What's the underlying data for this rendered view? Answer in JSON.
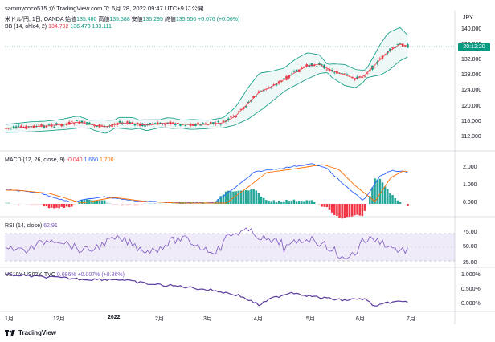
{
  "header": {
    "text": "sammycoco515 が TradingView.com で 6月 28, 2022 09:47 UTC+9 に公開"
  },
  "symbol": {
    "name": "米ドル/円, 1日, OANDA",
    "open_label": "始値",
    "open": "135.480",
    "high_label": "高値",
    "high": "135.588",
    "low_label": "安値",
    "low": "135.295",
    "close_label": "終値",
    "close": "135.556",
    "change": "+0.076 (+0.06%)"
  },
  "bb": {
    "label": "BB (14, ohlc4, 2)",
    "v1": "134.792",
    "v2": "136.473",
    "v3": "133.111"
  },
  "macd": {
    "label": "MACD (12, 26, close, 9)",
    "v1": "-0.040",
    "v2": "1.660",
    "v3": "1.700"
  },
  "rsi": {
    "label": "RSI (14, close)",
    "v1": "62.91"
  },
  "spread": {
    "label": "US10Y-US02Y, TVC",
    "v1": "0.086%",
    "v2": "+0.007% (+8.86%)"
  },
  "price_axis": {
    "currency": "JPY",
    "ticks": [
      "140.000",
      "136.000",
      "132.000",
      "128.000",
      "124.000",
      "120.000",
      "116.000",
      "112.000"
    ],
    "current_tag": "20:12:20"
  },
  "macd_axis": {
    "ticks": [
      "2.000",
      "1.000",
      "0.000"
    ]
  },
  "rsi_axis": {
    "ticks": [
      "75.00",
      "50.00",
      "25.00"
    ]
  },
  "spread_axis": {
    "ticks": [
      "1.000%",
      "0.500%",
      "0.000%"
    ]
  },
  "time_axis": {
    "ticks": [
      "1月",
      "12月",
      "2022",
      "2月",
      "3月",
      "4月",
      "5月",
      "6月",
      "7月"
    ]
  },
  "footer": {
    "brand": "TradingView"
  },
  "colors": {
    "up": "#089981",
    "down": "#f23645",
    "macd": "#2962ff",
    "signal": "#ff6d00",
    "rsi": "#7e57c2",
    "spread": "#5b3a9e"
  }
}
